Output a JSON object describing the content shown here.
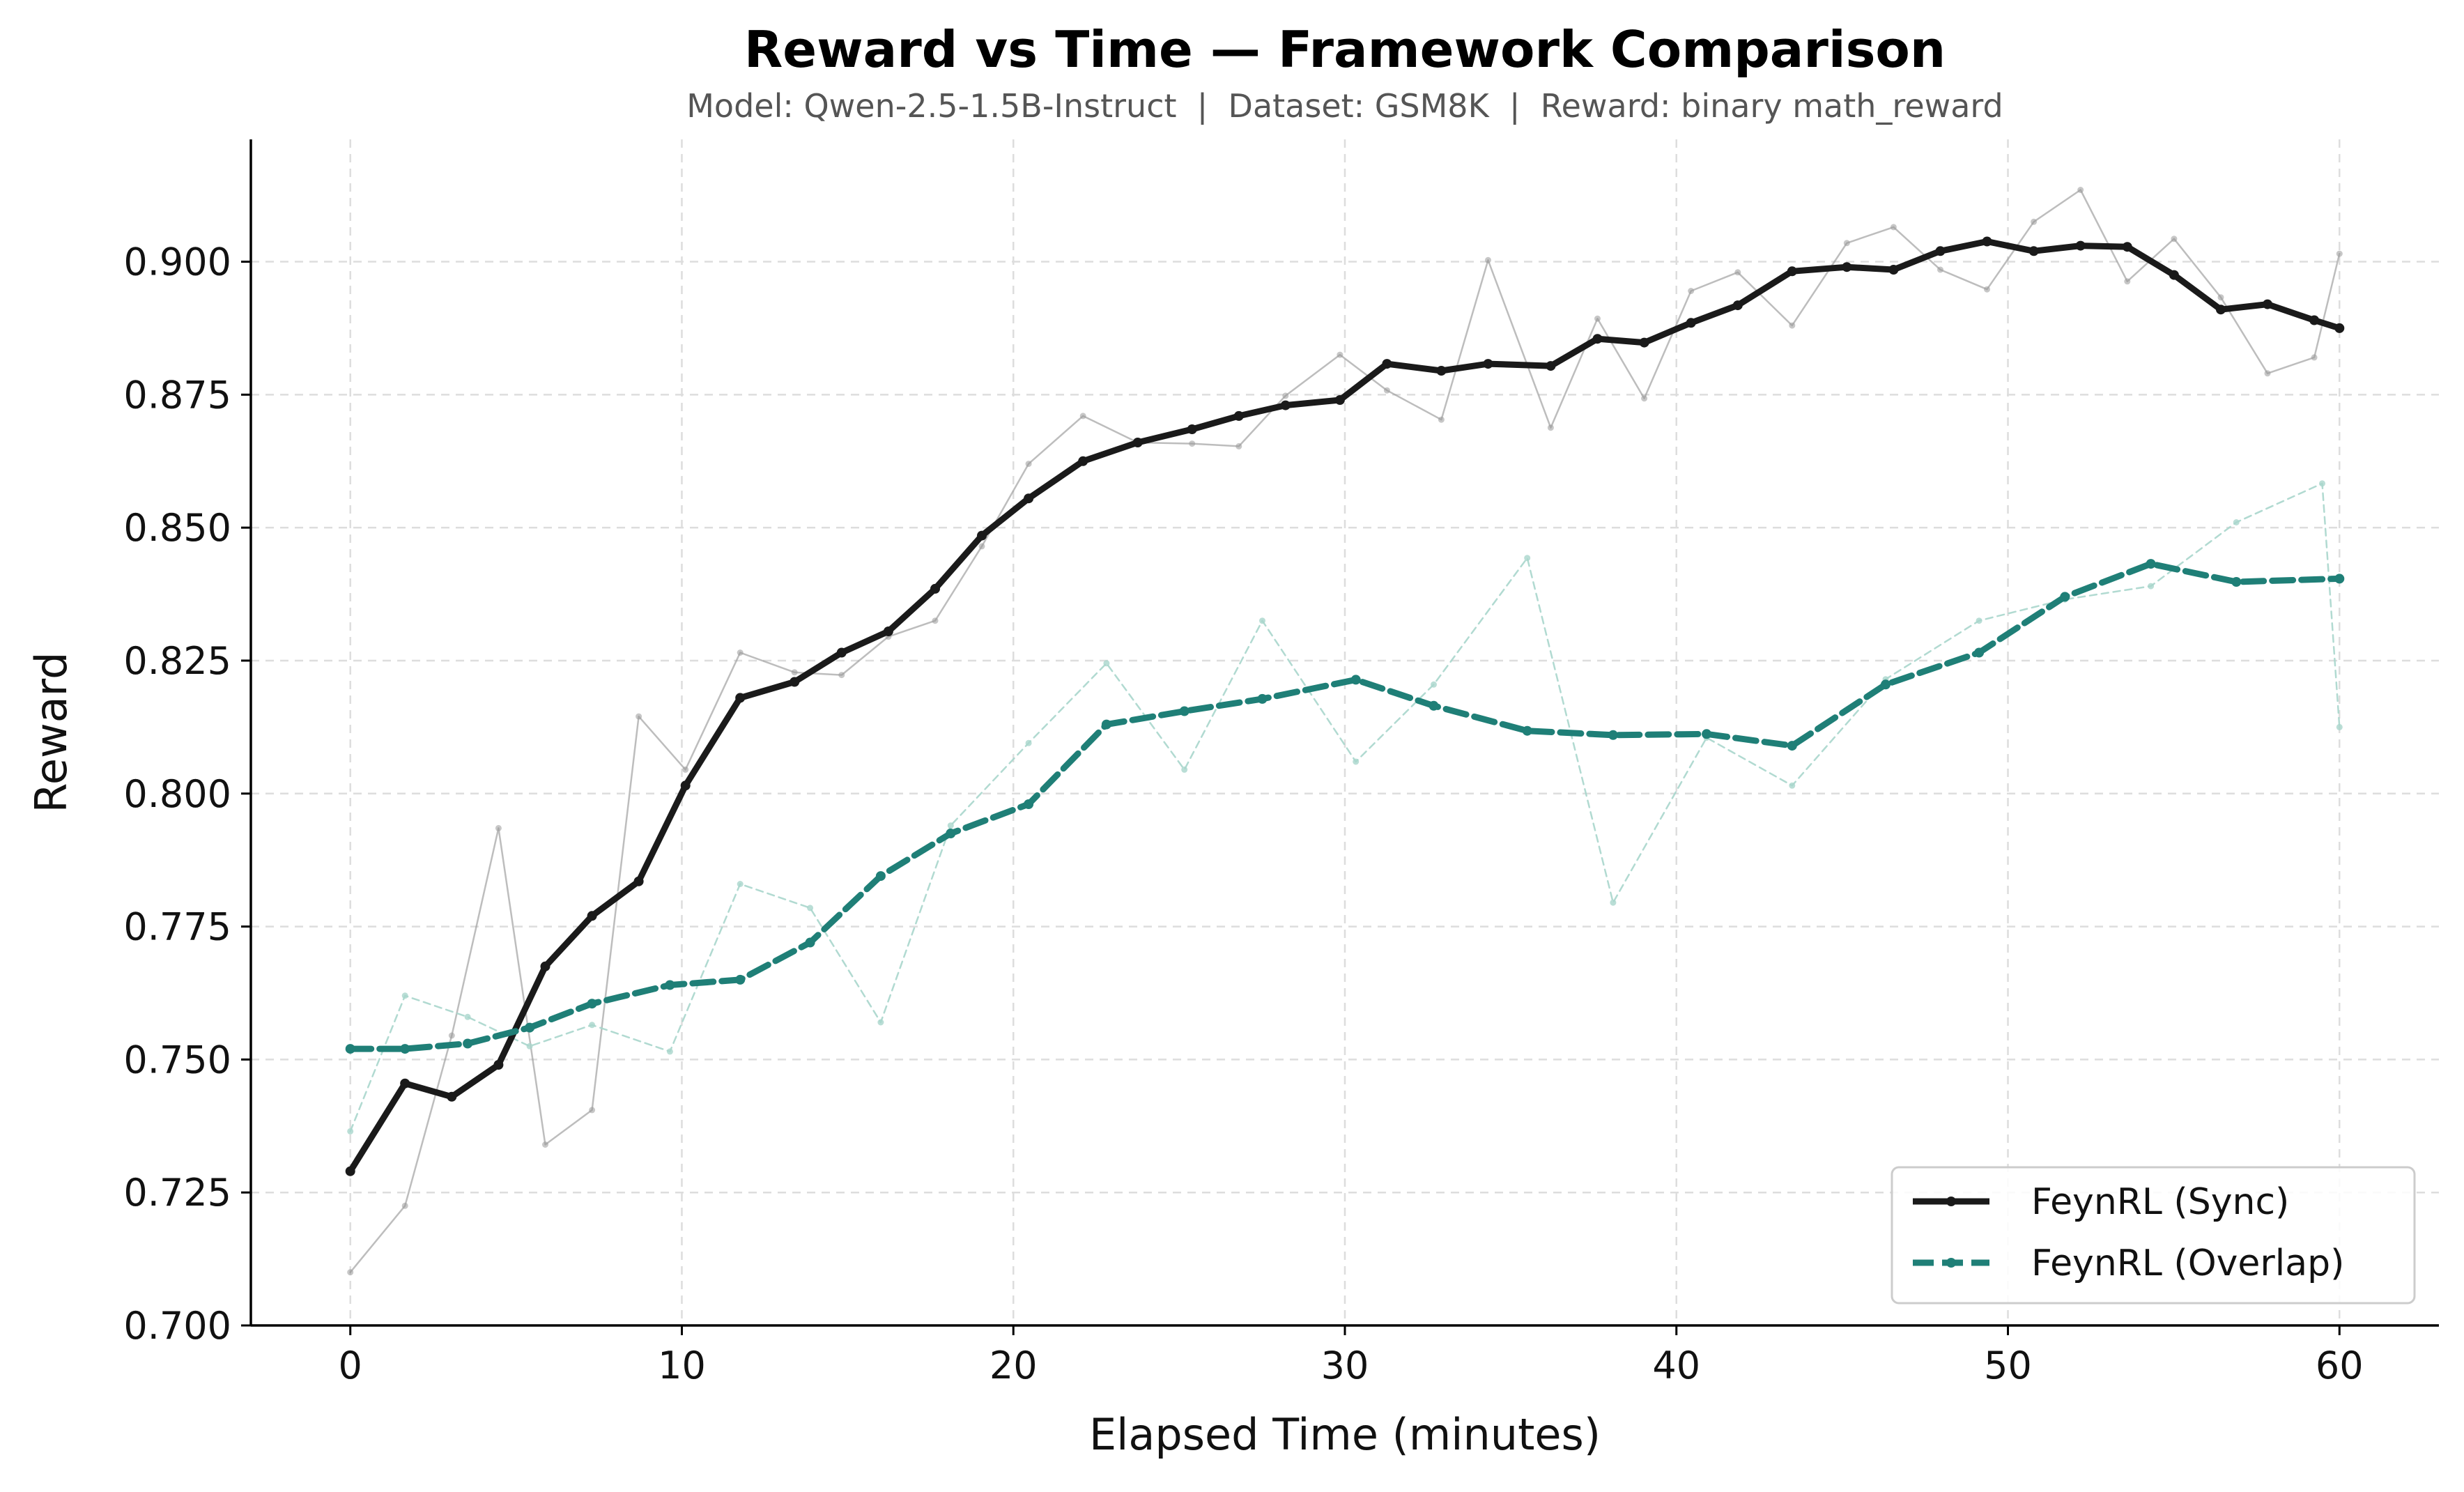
{
  "chart_data": {
    "type": "line",
    "title": "Reward vs Time — Framework Comparison",
    "subtitle": "Model: Qwen-2.5-1.5B-Instruct  |  Dataset: GSM8K  |  Reward: binary math_reward",
    "xlabel": "Elapsed Time (minutes)",
    "ylabel": "Reward",
    "xlim": [
      -3,
      63
    ],
    "ylim": [
      0.7,
      0.923
    ],
    "xticks": [
      0,
      10,
      20,
      30,
      40,
      50,
      60
    ],
    "xtick_labels": [
      "0",
      "10",
      "20",
      "30",
      "40",
      "50",
      "60"
    ],
    "yticks": [
      0.7,
      0.725,
      0.75,
      0.775,
      0.8,
      0.825,
      0.85,
      0.875,
      0.9
    ],
    "ytick_labels": [
      "0.700",
      "0.725",
      "0.750",
      "0.775",
      "0.800",
      "0.825",
      "0.850",
      "0.875",
      "0.900"
    ],
    "grid": true,
    "legend_position": "bottom-right",
    "series": [
      {
        "name": "FeynRL (Sync)",
        "color": "#1a1a1a",
        "style": "solid",
        "x": [
          0,
          1.65,
          3.06,
          4.47,
          5.88,
          7.29,
          8.7,
          10.11,
          11.76,
          13.4,
          14.82,
          16.23,
          17.64,
          19.05,
          20.46,
          22.1,
          23.75,
          25.39,
          26.8,
          28.21,
          29.85,
          31.27,
          32.91,
          34.32,
          36.21,
          37.62,
          39.03,
          40.44,
          41.85,
          43.49,
          45.14,
          46.55,
          47.96,
          49.37,
          50.78,
          52.19,
          53.6,
          55.01,
          56.42,
          57.83,
          59.24,
          60.0
        ],
        "values": [
          0.729,
          0.7455,
          0.743,
          0.749,
          0.7675,
          0.777,
          0.7835,
          0.8015,
          0.818,
          0.821,
          0.8265,
          0.8305,
          0.8385,
          0.8485,
          0.8555,
          0.8625,
          0.866,
          0.8685,
          0.871,
          0.873,
          0.874,
          0.8808,
          0.8795,
          0.8808,
          0.8804,
          0.8855,
          0.8848,
          0.8885,
          0.8918,
          0.8982,
          0.899,
          0.8985,
          0.902,
          0.9038,
          0.902,
          0.903,
          0.9028,
          0.8975,
          0.891,
          0.892,
          0.889,
          0.8875
        ]
      },
      {
        "name": "FeynRL (Overlap)",
        "color": "#1f7f77",
        "style": "dashed",
        "x": [
          0,
          1.65,
          3.54,
          5.41,
          7.29,
          9.64,
          11.76,
          13.87,
          16.0,
          18.11,
          20.46,
          22.81,
          25.16,
          27.51,
          30.33,
          32.68,
          35.5,
          38.09,
          40.91,
          43.49,
          46.31,
          49.13,
          51.72,
          54.31,
          56.89,
          60.0
        ],
        "values": [
          0.752,
          0.752,
          0.753,
          0.756,
          0.7605,
          0.764,
          0.765,
          0.772,
          0.7845,
          0.7925,
          0.798,
          0.813,
          0.8155,
          0.8178,
          0.8214,
          0.8165,
          0.8118,
          0.811,
          0.8112,
          0.809,
          0.8205,
          0.8265,
          0.837,
          0.8432,
          0.8398,
          0.8404
        ]
      },
      {
        "name": "",
        "color": "#999999",
        "style": "solid-thin",
        "x": [
          0,
          1.65,
          3.06,
          4.47,
          5.88,
          7.29,
          8.7,
          10.11,
          11.76,
          13.4,
          14.82,
          16.23,
          17.64,
          19.05,
          20.46,
          22.1,
          23.75,
          25.39,
          26.8,
          28.21,
          29.85,
          31.27,
          32.91,
          34.32,
          36.21,
          37.62,
          39.03,
          40.44,
          41.85,
          43.49,
          45.14,
          46.55,
          47.96,
          49.37,
          50.78,
          52.19,
          53.6,
          55.01,
          56.42,
          57.83,
          59.24,
          60.0
        ],
        "values": [
          0.71,
          0.7225,
          0.7545,
          0.7935,
          0.734,
          0.7405,
          0.8145,
          0.8045,
          0.8265,
          0.8228,
          0.8223,
          0.8295,
          0.8325,
          0.8465,
          0.862,
          0.871,
          0.866,
          0.8658,
          0.8653,
          0.8748,
          0.8825,
          0.8758,
          0.8703,
          0.9003,
          0.8688,
          0.8893,
          0.8743,
          0.8945,
          0.898,
          0.888,
          0.9035,
          0.9065,
          0.8985,
          0.8948,
          0.9075,
          0.9135,
          0.8963,
          0.9043,
          0.8933,
          0.879,
          0.882,
          0.9015
        ]
      },
      {
        "name": "",
        "color": "#a9d6cc",
        "style": "dashed-thin",
        "x": [
          0,
          1.65,
          3.54,
          5.41,
          7.29,
          9.64,
          11.76,
          13.87,
          16.0,
          18.11,
          20.46,
          22.81,
          25.16,
          27.51,
          30.33,
          32.68,
          35.5,
          38.09,
          40.91,
          43.49,
          46.31,
          49.13,
          51.72,
          54.31,
          56.89,
          59.48,
          60.0
        ],
        "values": [
          0.7365,
          0.762,
          0.758,
          0.7525,
          0.7565,
          0.7515,
          0.783,
          0.7785,
          0.757,
          0.794,
          0.8095,
          0.8245,
          0.8045,
          0.8325,
          0.806,
          0.8205,
          0.8443,
          0.7795,
          0.8105,
          0.8015,
          0.8215,
          0.8325,
          0.8365,
          0.839,
          0.851,
          0.8583,
          0.8125
        ]
      }
    ]
  }
}
